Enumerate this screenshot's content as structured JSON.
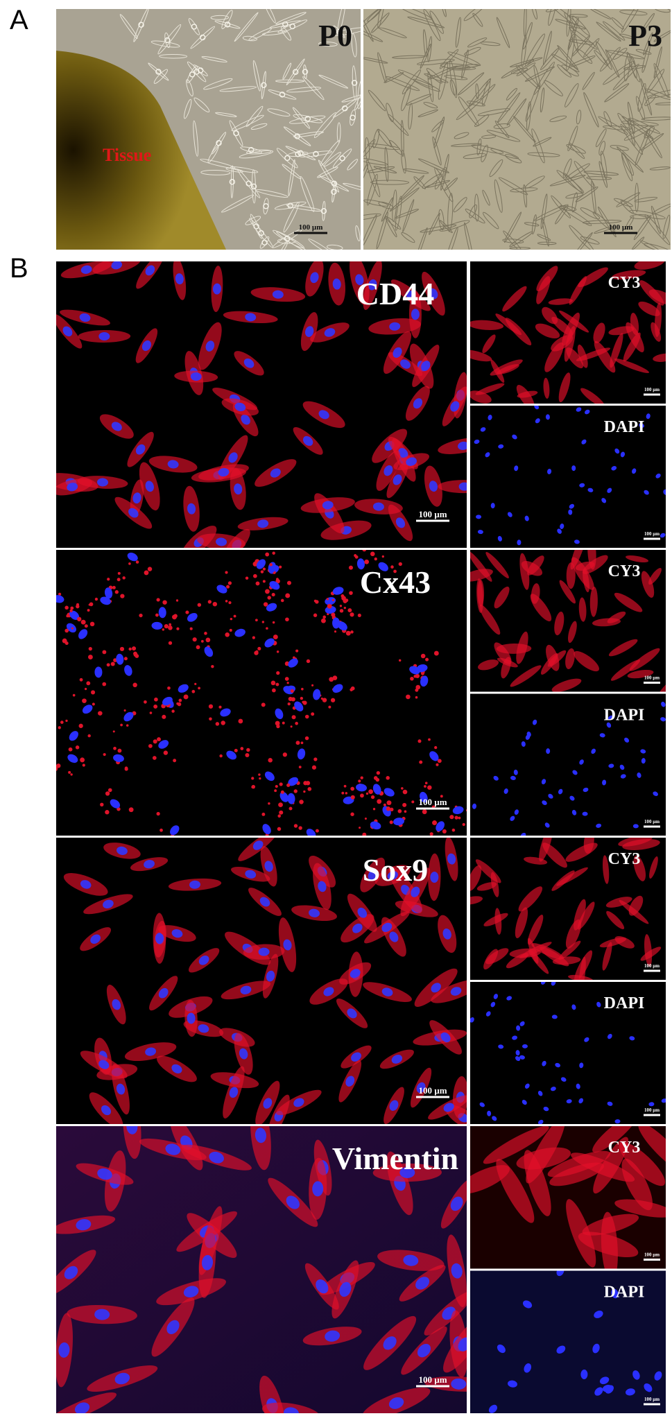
{
  "panel_a": {
    "label": "A",
    "images": [
      {
        "label": "P0",
        "annotation": "Tissue",
        "scale_bar": "100 µm"
      },
      {
        "label": "P3",
        "scale_bar": "100 µm"
      }
    ]
  },
  "panel_b": {
    "label": "B",
    "rows": [
      {
        "marker": "CD44",
        "scale_bar": "100 µm",
        "channels": [
          {
            "label": "CY3",
            "scale_bar": "100 µm"
          },
          {
            "label": "DAPI",
            "scale_bar": "100 µm"
          }
        ]
      },
      {
        "marker": "Cx43",
        "scale_bar": "100 µm",
        "channels": [
          {
            "label": "CY3",
            "scale_bar": "100 µm"
          },
          {
            "label": "DAPI",
            "scale_bar": "100 µm"
          }
        ]
      },
      {
        "marker": "Sox9",
        "scale_bar": "100 µm",
        "channels": [
          {
            "label": "CY3",
            "scale_bar": "100 µm"
          },
          {
            "label": "DAPI",
            "scale_bar": "100 µm"
          }
        ]
      },
      {
        "marker": "Vimentin",
        "scale_bar": "100 µm",
        "channels": [
          {
            "label": "CY3",
            "scale_bar": "100 µm"
          },
          {
            "label": "DAPI",
            "scale_bar": "100 µm"
          }
        ]
      }
    ]
  }
}
